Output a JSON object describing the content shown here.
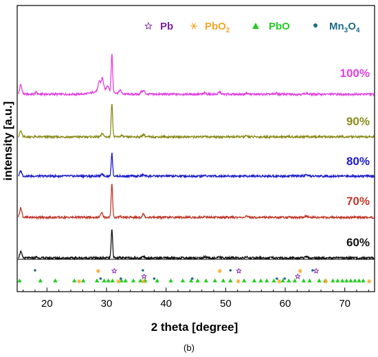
{
  "chart_data": {
    "type": "line",
    "xlabel": "2 theta [degree]",
    "ylabel": "intensity [a.u.]",
    "caption": "(b)",
    "xlim": [
      15,
      75
    ],
    "xticks": [
      20,
      30,
      40,
      50,
      60,
      70
    ],
    "grid": false,
    "legend_position": "top-right",
    "legend": [
      {
        "label": "Pb",
        "marker": "open-star",
        "color": "#7b1fa2"
      },
      {
        "label": "PbO",
        "sub": "2",
        "marker": "asterisk",
        "color": "#f5a623"
      },
      {
        "label": "PbO",
        "marker": "triangle",
        "color": "#22cc22"
      },
      {
        "label": "Mn",
        "sub": "3",
        "tail": "O",
        "sub2": "4",
        "marker": "dot",
        "color": "#1f6b8a"
      }
    ],
    "series": [
      {
        "name": "100%",
        "color": "#e040e0",
        "peaks": [
          {
            "x": 15.6,
            "h": 0.55
          },
          {
            "x": 18.2,
            "h": 0.12
          },
          {
            "x": 28.8,
            "h": 0.55
          },
          {
            "x": 29.3,
            "h": 0.7
          },
          {
            "x": 30.2,
            "h": 0.3
          },
          {
            "x": 30.9,
            "h": 2.2
          },
          {
            "x": 32.3,
            "h": 0.2
          },
          {
            "x": 35.9,
            "h": 0.15
          },
          {
            "x": 36.3,
            "h": 0.18
          },
          {
            "x": 46.5,
            "h": 0.08
          },
          {
            "x": 49.0,
            "h": 0.13
          },
          {
            "x": 53.5,
            "h": 0.08
          },
          {
            "x": 58.5,
            "h": 0.06
          },
          {
            "x": 63.5,
            "h": 0.06
          }
        ]
      },
      {
        "name": "90%",
        "color": "#8b8b1a",
        "peaks": [
          {
            "x": 15.6,
            "h": 0.35
          },
          {
            "x": 29.3,
            "h": 0.2
          },
          {
            "x": 30.9,
            "h": 2.0
          },
          {
            "x": 32.5,
            "h": 0.08
          },
          {
            "x": 36.2,
            "h": 0.15
          },
          {
            "x": 46.5,
            "h": 0.06
          },
          {
            "x": 53.5,
            "h": 0.05
          },
          {
            "x": 63.5,
            "h": 0.05
          }
        ]
      },
      {
        "name": "80%",
        "color": "#1a1acc",
        "peaks": [
          {
            "x": 15.6,
            "h": 0.3
          },
          {
            "x": 29.3,
            "h": 0.12
          },
          {
            "x": 30.9,
            "h": 1.35
          },
          {
            "x": 36.2,
            "h": 0.07
          },
          {
            "x": 46.5,
            "h": 0.05
          },
          {
            "x": 63.5,
            "h": 0.05
          }
        ]
      },
      {
        "name": "70%",
        "color": "#c0392b",
        "peaks": [
          {
            "x": 15.6,
            "h": 0.55
          },
          {
            "x": 29.2,
            "h": 0.25
          },
          {
            "x": 30.9,
            "h": 2.0
          },
          {
            "x": 32.3,
            "h": 0.07
          },
          {
            "x": 36.2,
            "h": 0.2
          },
          {
            "x": 46.5,
            "h": 0.06
          },
          {
            "x": 53.5,
            "h": 0.05
          },
          {
            "x": 63.5,
            "h": 0.05
          }
        ]
      },
      {
        "name": "60%",
        "color": "#111111",
        "peaks": [
          {
            "x": 15.6,
            "h": 0.35
          },
          {
            "x": 18.2,
            "h": 0.05
          },
          {
            "x": 30.9,
            "h": 1.65
          },
          {
            "x": 32.3,
            "h": 0.05
          },
          {
            "x": 36.2,
            "h": 0.1
          },
          {
            "x": 46.5,
            "h": 0.07
          },
          {
            "x": 49.0,
            "h": 0.05
          },
          {
            "x": 53.5,
            "h": 0.05
          },
          {
            "x": 63.5,
            "h": 0.06
          }
        ]
      }
    ],
    "reference_markers": {
      "Mn3O4": {
        "color": "#1f6b8a",
        "x": [
          18.0,
          29.0,
          32.4,
          36.1,
          38.0,
          44.4,
          50.8,
          58.6,
          59.9,
          64.6
        ]
      },
      "Pb": {
        "color": "#7b1fa2",
        "x": [
          31.3,
          36.3,
          52.2,
          62.1,
          65.2
        ]
      },
      "PbO2": {
        "color": "#f5a623",
        "x": [
          25.4,
          28.6,
          32.0,
          36.2,
          49.0,
          52.1,
          59.0,
          62.5,
          66.8,
          74.1
        ]
      },
      "PbO": {
        "color": "#22cc22",
        "x": [
          15.4,
          18.9,
          21.4,
          24.6,
          26.1,
          28.4,
          29.6,
          30.3,
          31.0,
          32.5,
          33.2,
          34.5,
          35.7,
          36.5,
          38.5,
          40.8,
          42.8,
          44.2,
          45.3,
          46.7,
          48.2,
          49.6,
          50.8,
          53.1,
          54.8,
          55.9,
          56.9,
          58.1,
          59.6,
          60.6,
          61.6,
          63.1,
          64.1,
          65.7,
          66.7,
          68.0,
          68.8,
          69.6,
          70.3,
          71.0,
          71.7,
          72.4,
          73.1
        ]
      }
    }
  }
}
